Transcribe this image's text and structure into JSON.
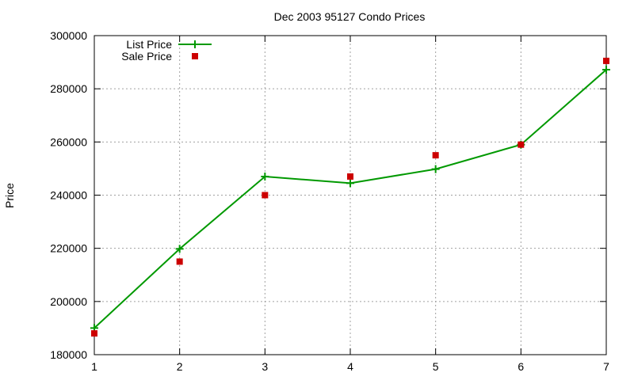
{
  "chart_data": {
    "type": "line",
    "title": "Dec 2003 95127 Condo Prices",
    "xlabel": "",
    "ylabel": "Price",
    "x": [
      1,
      2,
      3,
      4,
      5,
      6,
      7
    ],
    "xlim": [
      1,
      7
    ],
    "ylim": [
      180000,
      300000
    ],
    "xticks": [
      1,
      2,
      3,
      4,
      5,
      6,
      7
    ],
    "yticks": [
      180000,
      200000,
      220000,
      240000,
      260000,
      280000,
      300000
    ],
    "grid": true,
    "legend_position": "top-left",
    "series": [
      {
        "name": "List Price",
        "style": "line+cross",
        "color": "#009900",
        "values": [
          190000,
          219800,
          247000,
          244500,
          249800,
          259000,
          287200
        ]
      },
      {
        "name": "Sale Price",
        "style": "square-points",
        "color": "#cc0000",
        "values": [
          188000,
          215000,
          240000,
          247000,
          255000,
          259000,
          290500
        ]
      }
    ]
  }
}
